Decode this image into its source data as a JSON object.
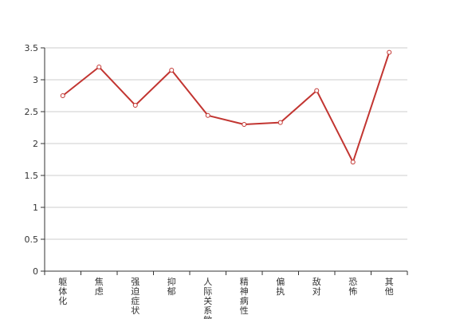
{
  "chart_data": {
    "type": "line",
    "categories": [
      "躯体化",
      "焦虑",
      "强迫症状",
      "抑郁",
      "人际关系敏感",
      "精神病性",
      "偏执",
      "敌对",
      "恐怖",
      "其他"
    ],
    "series": [
      {
        "values": [
          2.75,
          3.2,
          2.6,
          3.15,
          2.44,
          2.3,
          2.33,
          2.83,
          1.71,
          3.43
        ]
      }
    ],
    "yticks": [
      "0",
      "0.5",
      "1",
      "1.5",
      "2",
      "2.5",
      "3",
      "3.5"
    ],
    "ylim": [
      0,
      3.5
    ],
    "grid": true,
    "colors": {
      "line": "#c23531",
      "grid": "#cccccc",
      "axis": "#333333"
    }
  }
}
